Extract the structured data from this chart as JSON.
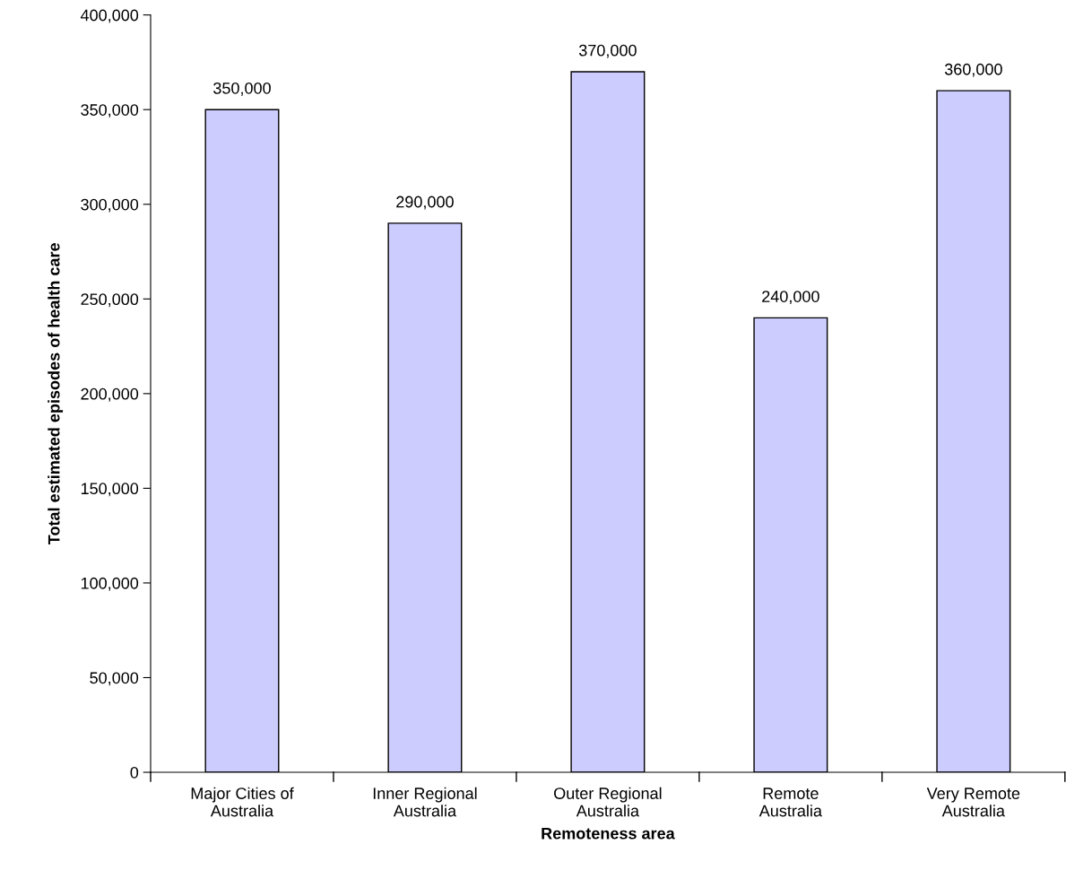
{
  "chart_data": {
    "type": "bar",
    "xlabel": "Remoteness area",
    "ylabel": "Total estimated episodes of health care",
    "categories": [
      "Major Cities of\nAustralia",
      "Inner Regional\nAustralia",
      "Outer Regional\nAustralia",
      "Remote\nAustralia",
      "Very Remote\nAustralia"
    ],
    "values": [
      350000,
      290000,
      370000,
      240000,
      360000
    ],
    "value_labels": [
      "350,000",
      "290,000",
      "370,000",
      "240,000",
      "360,000"
    ],
    "color": "#ccccff",
    "ylim": [
      0,
      400000
    ],
    "yticks": [
      {
        "value": 0,
        "label": "0"
      },
      {
        "value": 50000,
        "label": "50,000"
      },
      {
        "value": 100000,
        "label": "100,000"
      },
      {
        "value": 150000,
        "label": "150,000"
      },
      {
        "value": 200000,
        "label": "200,000"
      },
      {
        "value": 250000,
        "label": "250,000"
      },
      {
        "value": 300000,
        "label": "300,000"
      },
      {
        "value": 350000,
        "label": "350,000"
      },
      {
        "value": 400000,
        "label": "400,000"
      }
    ],
    "grid": false
  }
}
